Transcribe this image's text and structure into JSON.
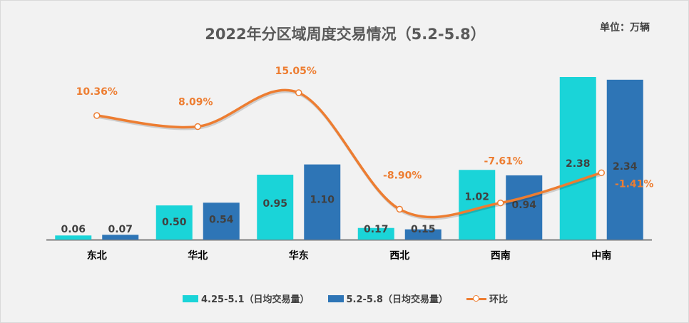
{
  "chart_data": {
    "type": "bar",
    "title": "2022年分区域周度交易情况（5.2-5.8）",
    "unit": "单位：万辆",
    "categories": [
      "东北",
      "华北",
      "华东",
      "西北",
      "西南",
      "中南"
    ],
    "series": [
      {
        "name": "4.25-5.1（日均交易量）",
        "type": "bar",
        "color": "#1ad4d8",
        "values": [
          0.06,
          0.5,
          0.95,
          0.17,
          1.02,
          2.38
        ],
        "labels": [
          "0.06",
          "0.50",
          "0.95",
          "0.17",
          "1.02",
          "2.38"
        ]
      },
      {
        "name": "5.2-5.8（日均交易量）",
        "type": "bar",
        "color": "#2e75b6",
        "values": [
          0.07,
          0.54,
          1.1,
          0.15,
          0.94,
          2.34
        ],
        "labels": [
          "0.07",
          "0.54",
          "1.10",
          "0.15",
          "0.94",
          "2.34"
        ]
      },
      {
        "name": "环比",
        "type": "line",
        "color": "#ed7d31",
        "values": [
          10.36,
          8.09,
          15.05,
          -8.9,
          -7.61,
          -1.41
        ],
        "labels": [
          "10.36%",
          "8.09%",
          "15.05%",
          "-8.90%",
          "-7.61%",
          "-1.41%"
        ]
      }
    ],
    "legend_position": "bottom",
    "grid": false
  }
}
